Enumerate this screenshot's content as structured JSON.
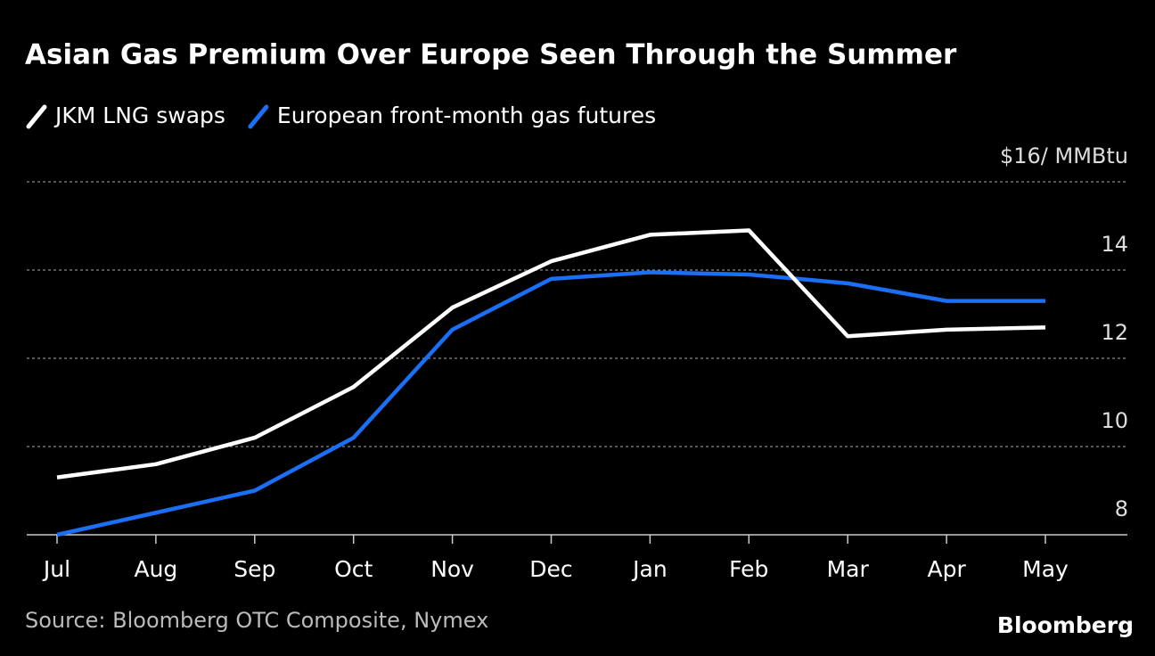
{
  "chart_data": {
    "type": "line",
    "title": "Asian Gas Premium Over Europe Seen Through the Summer",
    "categories": [
      "Jul",
      "Aug",
      "Sep",
      "Oct",
      "Nov",
      "Dec",
      "Jan",
      "Feb",
      "Mar",
      "Apr",
      "May"
    ],
    "series": [
      {
        "name": "JKM LNG swaps",
        "color": "#ffffff",
        "values": [
          9.3,
          9.6,
          10.2,
          11.35,
          13.15,
          14.2,
          14.8,
          14.9,
          12.5,
          12.65,
          12.7
        ]
      },
      {
        "name": "European front-month gas futures",
        "color": "#1a6ff5",
        "values": [
          8.0,
          8.5,
          9.0,
          10.2,
          12.65,
          13.8,
          13.95,
          13.9,
          13.7,
          13.3,
          13.3
        ]
      }
    ],
    "ylim": [
      8,
      16
    ],
    "yticks": [
      8,
      10,
      12,
      14,
      {
        "value": 16,
        "label": "$16/ MMBtu"
      }
    ],
    "grid": true,
    "legend": "top-left",
    "source": "Source: Bloomberg OTC Composite, Nymex",
    "brand": "Bloomberg"
  }
}
